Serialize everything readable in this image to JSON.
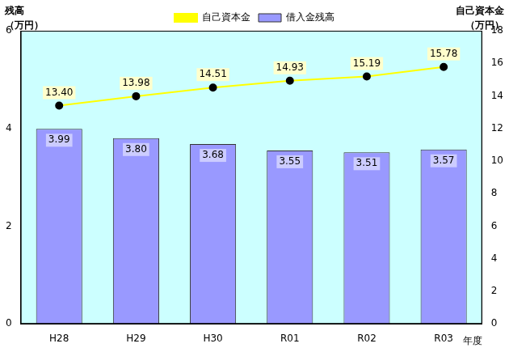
{
  "chart_data": {
    "type": "bar",
    "categories": [
      "H28",
      "H29",
      "H30",
      "R01",
      "R02",
      "R03"
    ],
    "xlabel": "年度",
    "ylabel": [
      "残高",
      "（万円）"
    ],
    "y2label": [
      "自己資本金",
      "（万円）"
    ],
    "series": [
      {
        "name": "借入金残高",
        "type": "bar",
        "color": "#9999ff",
        "axis": "y",
        "values": [
          3.99,
          3.8,
          3.68,
          3.55,
          3.51,
          3.57
        ],
        "value_labels": [
          "3.99",
          "3.80",
          "3.68",
          "3.55",
          "3.51",
          "3.57"
        ]
      },
      {
        "name": "自己資本金",
        "type": "line",
        "color": "#ffff00",
        "marker": "circle",
        "axis": "y2",
        "values": [
          13.4,
          13.98,
          14.51,
          14.93,
          15.19,
          15.78
        ],
        "value_labels": [
          "13.40",
          "13.98",
          "14.51",
          "14.93",
          "15.19",
          "15.78"
        ]
      }
    ],
    "ylim": [
      0,
      6
    ],
    "yticks": [
      0,
      2,
      4,
      6
    ],
    "y2lim": [
      0,
      18
    ],
    "y2ticks": [
      0,
      2,
      4,
      6,
      8,
      10,
      12,
      14,
      16,
      18
    ],
    "grid": false,
    "legend": "top",
    "data_labels": true
  }
}
